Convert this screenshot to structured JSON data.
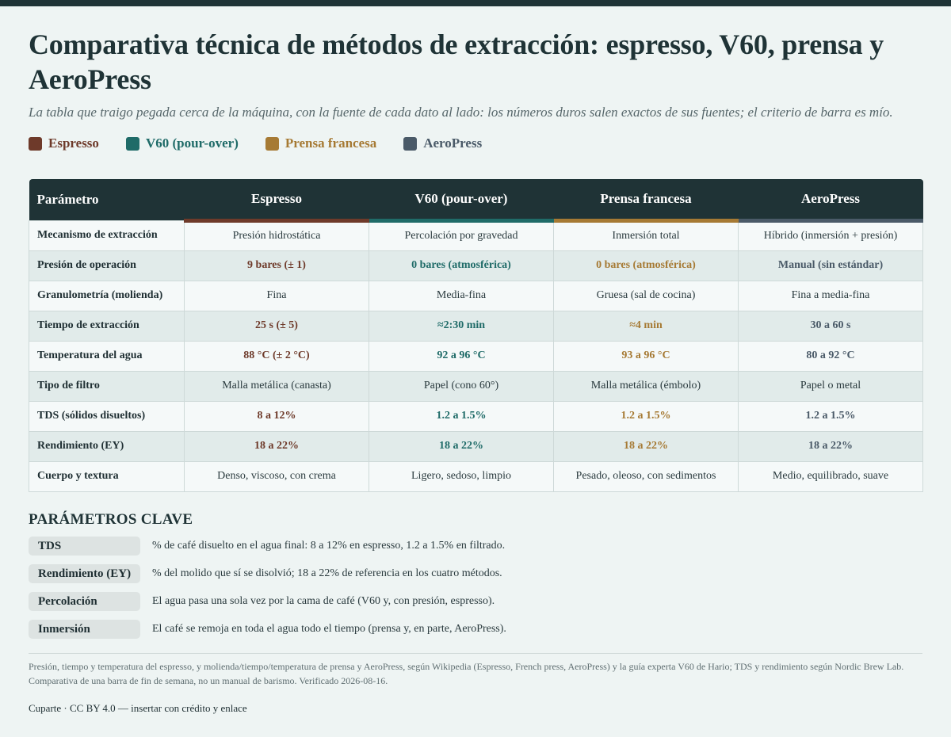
{
  "title": "Comparativa técnica de métodos de extracción: espresso, V60, prensa y AeroPress",
  "subtitle": "La tabla que traigo pegada cerca de la máquina, con la fuente de cada dato al lado: los números duros salen exactos de sus fuentes; el criterio de barra es mío.",
  "colors": {
    "espresso": "#6e3a2a",
    "v60": "#1f6b68",
    "prensa": "#a67a34",
    "aeropress": "#4a5a68",
    "header_bg": "#1f3336"
  },
  "legend": [
    {
      "label": "Espresso",
      "color": "#6e3a2a"
    },
    {
      "label": "V60 (pour-over)",
      "color": "#1f6b68"
    },
    {
      "label": "Prensa francesa",
      "color": "#a67a34"
    },
    {
      "label": "AeroPress",
      "color": "#4a5a68"
    }
  ],
  "table": {
    "headers": [
      "Parámetro",
      "Espresso",
      "V60 (pour-over)",
      "Prensa francesa",
      "AeroPress"
    ],
    "rows": [
      {
        "param": "Mecanismo de extracción",
        "values": [
          "Presión hidrostática",
          "Percolación por gravedad",
          "Inmersión total",
          "Híbrido (inmersión + presión)"
        ],
        "emphasis": false
      },
      {
        "param": "Presión de operación",
        "values": [
          "9 bares (± 1)",
          "0 bares (atmosférica)",
          "0 bares (atmosférica)",
          "Manual (sin estándar)"
        ],
        "emphasis": true
      },
      {
        "param": "Granulometría (molienda)",
        "values": [
          "Fina",
          "Media-fina",
          "Gruesa (sal de cocina)",
          "Fina a media-fina"
        ],
        "emphasis": false
      },
      {
        "param": "Tiempo de extracción",
        "values": [
          "25 s (± 5)",
          "≈2:30 min",
          "≈4 min",
          "30 a 60 s"
        ],
        "emphasis": true
      },
      {
        "param": "Temperatura del agua",
        "values": [
          "88 °C (± 2 °C)",
          "92 a 96 °C",
          "93 a 96 °C",
          "80 a 92 °C"
        ],
        "emphasis": true
      },
      {
        "param": "Tipo de filtro",
        "values": [
          "Malla metálica (canasta)",
          "Papel (cono 60°)",
          "Malla metálica (émbolo)",
          "Papel o metal"
        ],
        "emphasis": false
      },
      {
        "param": "TDS (sólidos disueltos)",
        "values": [
          "8 a 12%",
          "1.2 a 1.5%",
          "1.2 a 1.5%",
          "1.2 a 1.5%"
        ],
        "emphasis": true
      },
      {
        "param": "Rendimiento (EY)",
        "values": [
          "18 a 22%",
          "18 a 22%",
          "18 a 22%",
          "18 a 22%"
        ],
        "emphasis": true
      },
      {
        "param": "Cuerpo y textura",
        "values": [
          "Denso, viscoso, con crema",
          "Ligero, sedoso, limpio",
          "Pesado, oleoso, con sedimentos",
          "Medio, equilibrado, suave"
        ],
        "emphasis": false
      }
    ]
  },
  "key_params": {
    "title": "PARÁMETROS CLAVE",
    "items": [
      {
        "term": "TDS",
        "desc": "% de café disuelto en el agua final: 8 a 12% en espresso, 1.2 a 1.5% en filtrado."
      },
      {
        "term": "Rendimiento (EY)",
        "desc": "% del molido que sí se disolvió; 18 a 22% de referencia en los cuatro métodos."
      },
      {
        "term": "Percolación",
        "desc": "El agua pasa una sola vez por la cama de café (V60 y, con presión, espresso)."
      },
      {
        "term": "Inmersión",
        "desc": "El café se remoja en toda el agua todo el tiempo (prensa y, en parte, AeroPress)."
      }
    ]
  },
  "sources": "Presión, tiempo y temperatura del espresso, y molienda/tiempo/temperatura de prensa y AeroPress, según Wikipedia (Espresso, French press, AeroPress) y la guía experta V60 de Hario; TDS y rendimiento según Nordic Brew Lab. Comparativa de una barra de fin de semana, no un manual de barismo. Verificado 2026-08-16.",
  "credit": "Cuparte · CC BY 4.0 — insertar con crédito y enlace"
}
